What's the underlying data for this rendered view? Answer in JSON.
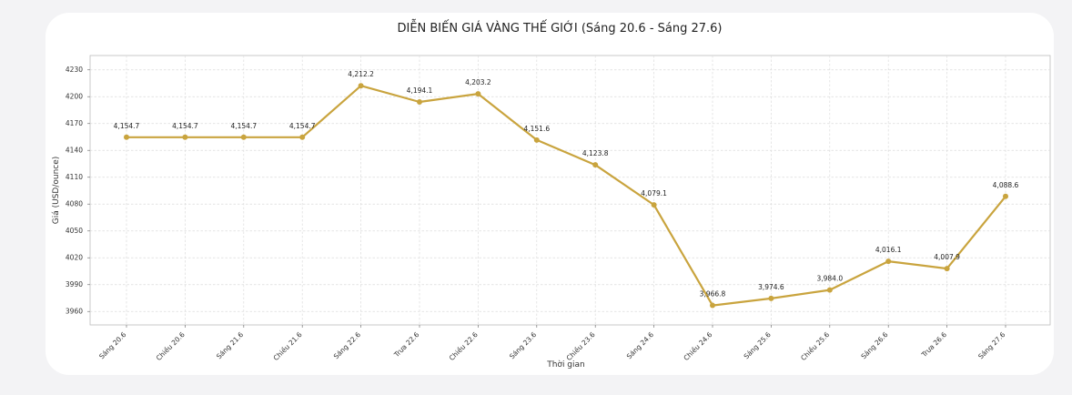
{
  "chart_data": {
    "type": "line",
    "title": "DIỄN BIẾN GIÁ VÀNG THẾ GIỚI (Sáng 20.6 - Sáng 27.6)",
    "xlabel": "Thời gian",
    "ylabel": "Giá (USD/ounce)",
    "categories": [
      "Sáng 20.6",
      "Chiều 20.6",
      "Sáng 21.6",
      "Chiều 21.6",
      "Sáng 22.6",
      "Trưa 22.6",
      "Chiều 22.6",
      "Sáng 23.6",
      "Chiều 23.6",
      "Sáng 24.6",
      "Chiều 24.6",
      "Sáng 25.6",
      "Chiều 25.6",
      "Sáng 26.6",
      "Trưa 26.6",
      "Sáng 27.6"
    ],
    "values": [
      4154.7,
      4154.7,
      4154.7,
      4154.7,
      4212.2,
      4194.1,
      4203.2,
      4151.6,
      4123.8,
      4079.1,
      3966.8,
      3974.6,
      3984.0,
      4016.1,
      4007.9,
      4088.6
    ],
    "data_labels": [
      "4,154.7",
      "4,154.7",
      "4,154.7",
      "4,154.7",
      "4,212.2",
      "4,194.1",
      "4,203.2",
      "4,151.6",
      "4,123.8",
      "4,079.1",
      "3,966.8",
      "3,974.6",
      "3,984.0",
      "4,016.1",
      "4,007.9",
      "4,088.6"
    ],
    "yticks": [
      3960,
      3990,
      4020,
      4050,
      4080,
      4110,
      4140,
      4170,
      4200,
      4230
    ],
    "ylim": [
      3945,
      4246
    ],
    "grid": true,
    "line_color": "#c9a43e",
    "marker_color": "#c9a43e"
  }
}
